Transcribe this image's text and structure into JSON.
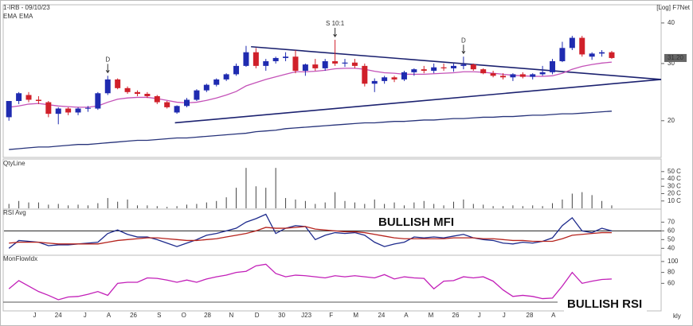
{
  "chart_data": [
    {
      "type": "candlestick",
      "title": "1-IRB - 09/10/23",
      "scale_label": "[Log] F7Net",
      "log_scale": true,
      "ylim": [
        15.5,
        45
      ],
      "yticks": [
        20,
        30,
        40
      ],
      "xlim": [
        -0.5,
        66
      ],
      "up_color": "#1f2bb0",
      "down_color": "#d0202a",
      "open": [
        20.5,
        23,
        24,
        23.2,
        22.8,
        21,
        21.8,
        21.2,
        21.8,
        21.8,
        24.3,
        26.8,
        25.2,
        24.5,
        24.2,
        23.8,
        22.8,
        21.2,
        22.2,
        23.2,
        24.8,
        25.8,
        26.8,
        27.8,
        29.5,
        32.5,
        29.5,
        30.5,
        31.2,
        31.5,
        28.5,
        29.8,
        29,
        30.5,
        30,
        30.2,
        29.5,
        26,
        26.5,
        27.2,
        26.8,
        28.2,
        28.8,
        28.5,
        29.2,
        29,
        29.5,
        29.8,
        28.8,
        28,
        27.5,
        27.2,
        27.8,
        27.3,
        27.8,
        28.2,
        30.5,
        33.5,
        36,
        31.5,
        32.2,
        32.5
      ],
      "high": [
        23,
        24.5,
        24.5,
        23.8,
        23,
        22,
        22,
        22,
        22.2,
        24.5,
        27.5,
        27,
        25.5,
        24.8,
        24.5,
        24,
        23,
        22.3,
        23.5,
        25,
        26,
        27,
        28,
        30,
        34,
        33.5,
        31,
        31.5,
        32.5,
        33,
        30,
        31,
        31,
        35.5,
        31,
        31,
        30,
        27,
        27.5,
        27.5,
        28.5,
        29,
        29.5,
        30,
        30,
        30,
        31.5,
        30,
        29,
        28.5,
        28,
        28,
        28.2,
        28,
        29.5,
        31,
        35,
        36.5,
        36.5,
        32.5,
        33,
        32.8
      ],
      "low": [
        20,
        22.5,
        22.8,
        22.5,
        20.5,
        19.5,
        20.8,
        20.8,
        21.3,
        21.6,
        24,
        25,
        24.2,
        23.8,
        23.5,
        22.5,
        21.8,
        21,
        22,
        23,
        24.5,
        25.5,
        26.5,
        27.5,
        29.3,
        29,
        28.5,
        30,
        30.5,
        28,
        27.5,
        28.5,
        28.5,
        29.5,
        29.3,
        29,
        25.5,
        24.5,
        26,
        26.3,
        26.5,
        27.5,
        28,
        28,
        28.5,
        28.3,
        28.8,
        28.5,
        27.8,
        27.2,
        26.8,
        26.5,
        27,
        26.8,
        27.5,
        27.8,
        30.3,
        33,
        31.5,
        30.8,
        31.5,
        31
      ],
      "close": [
        23,
        24.3,
        23.2,
        23,
        21,
        21.8,
        21.2,
        21.8,
        21.9,
        24.3,
        26.8,
        25.2,
        24.5,
        24.2,
        23.8,
        22.8,
        22,
        22.2,
        23.2,
        24.8,
        25.8,
        26.8,
        27.8,
        29.5,
        32.5,
        29.5,
        30.5,
        31.2,
        31.5,
        28.5,
        29.8,
        29,
        30.5,
        30,
        30.2,
        29.5,
        26,
        26.5,
        27.2,
        26.8,
        28.2,
        28.8,
        28.5,
        29.2,
        29,
        29.5,
        29.8,
        28.8,
        28,
        27.5,
        27.2,
        27.8,
        27.3,
        27.8,
        28.2,
        30.5,
        33.5,
        36,
        32,
        32.2,
        32.5,
        31.2
      ],
      "series": [
        {
          "name": "EMA",
          "color": "#c452b8",
          "values": [
            22,
            22.2,
            22.5,
            22.6,
            22.4,
            22.2,
            22.1,
            22,
            22,
            22.2,
            22.8,
            23.3,
            23.5,
            23.6,
            23.6,
            23.4,
            23.1,
            22.8,
            22.7,
            22.8,
            23.1,
            23.5,
            24,
            24.6,
            25.6,
            26.2,
            26.8,
            27.3,
            27.8,
            28.3,
            28.3,
            28.4,
            28.6,
            28.9,
            29,
            29,
            28.8,
            28.4,
            28.1,
            28,
            27.8,
            27.8,
            27.8,
            27.9,
            28,
            28.1,
            28.3,
            28.3,
            28.2,
            28,
            27.8,
            27.6,
            27.5,
            27.4,
            27.4,
            27.5,
            28,
            28.8,
            29.4,
            29.8,
            30.1,
            30.3
          ]
        },
        {
          "name": "EMA",
          "color": "#27337a",
          "values": [
            16.3,
            16.4,
            16.5,
            16.6,
            16.6,
            16.7,
            16.8,
            16.9,
            16.9,
            17.0,
            17.1,
            17.2,
            17.3,
            17.4,
            17.4,
            17.5,
            17.6,
            17.7,
            17.7,
            17.8,
            17.9,
            18.0,
            18.1,
            18.2,
            18.3,
            18.5,
            18.6,
            18.7,
            18.9,
            19.0,
            19.1,
            19.2,
            19.3,
            19.4,
            19.5,
            19.6,
            19.7,
            19.7,
            19.8,
            19.9,
            19.9,
            20.0,
            20.1,
            20.1,
            20.2,
            20.3,
            20.3,
            20.4,
            20.5,
            20.5,
            20.6,
            20.6,
            20.7,
            20.8,
            20.8,
            20.9,
            21.0,
            21.0,
            21.1,
            21.2,
            21.3,
            21.4
          ]
        }
      ],
      "trendlines": [
        {
          "color": "#1c2270",
          "x": [
            24.5,
            66
          ],
          "y": [
            33.8,
            26.8
          ]
        },
        {
          "color": "#1c2270",
          "x": [
            16.8,
            66
          ],
          "y": [
            19.7,
            26.8
          ]
        }
      ],
      "annotations": [
        {
          "text": "D",
          "index": 10
        },
        {
          "text": "S 10:1",
          "index": 33
        },
        {
          "text": "D",
          "index": 46
        }
      ],
      "last_price": {
        "value": 31.2,
        "label": "31.20"
      }
    },
    {
      "type": "bar",
      "title": "QtyLine",
      "color": "#444",
      "ylim": [
        0,
        66
      ],
      "yticks": [
        {
          "value": 10,
          "label": "10 C"
        },
        {
          "value": 20,
          "label": "20 C"
        },
        {
          "value": 30,
          "label": "30 C"
        },
        {
          "value": 40,
          "label": "40 C"
        },
        {
          "value": 50,
          "label": "50 C"
        }
      ],
      "values": [
        6,
        10,
        8,
        8,
        5,
        6,
        4,
        5,
        4,
        7,
        14,
        9,
        12,
        4,
        4,
        3,
        2,
        3,
        5,
        6,
        8,
        10,
        15,
        28,
        55,
        30,
        28,
        55,
        14,
        12,
        10,
        6,
        8,
        22,
        10,
        8,
        6,
        12,
        6,
        8,
        4,
        8,
        10,
        6,
        4,
        9,
        12,
        6,
        5,
        3,
        3,
        4,
        3,
        4,
        3,
        7,
        12,
        20,
        22,
        18,
        10,
        4
      ]
    },
    {
      "type": "line",
      "title": "RSI Avg",
      "callout": "BULLISH MFI",
      "ylim": [
        33,
        84
      ],
      "yticks": [
        40,
        50,
        60,
        70
      ],
      "reference_line": 60,
      "series": [
        {
          "name": "RSI",
          "color": "#1d2a8c",
          "values": [
            40,
            49,
            48,
            47,
            43,
            44,
            44,
            45,
            46,
            47,
            57,
            61,
            56,
            53,
            53,
            50,
            46,
            42,
            46,
            50,
            55,
            57,
            60,
            63,
            70,
            74,
            79,
            57,
            63,
            66,
            65,
            50,
            55,
            58,
            57,
            58,
            55,
            47,
            42,
            45,
            47,
            53,
            52,
            53,
            52,
            54,
            56,
            52,
            50,
            49,
            46,
            45,
            47,
            46,
            48,
            52,
            66,
            75,
            60,
            58,
            63,
            60
          ]
        },
        {
          "name": "Avg",
          "color": "#b5231d",
          "values": [
            46,
            47,
            47,
            47,
            46,
            45,
            45,
            45,
            45,
            45,
            47,
            49,
            50,
            51,
            52,
            52,
            51,
            50,
            49,
            49,
            50,
            51,
            53,
            55,
            57,
            60,
            64,
            63,
            63,
            64,
            65,
            62,
            61,
            60,
            59,
            59,
            58,
            56,
            54,
            52,
            51,
            51,
            51,
            51,
            51,
            52,
            52,
            52,
            51,
            51,
            50,
            49,
            49,
            48,
            48,
            48,
            51,
            55,
            56,
            57,
            58,
            58
          ]
        }
      ]
    },
    {
      "type": "line",
      "title": "MonFlowIdx",
      "callout": "BULLISH RSI",
      "ylim": [
        11,
        110
      ],
      "yticks": [
        60,
        80,
        100
      ],
      "series": [
        {
          "name": "MonFlowIdx",
          "color": "#c21fb8",
          "values": [
            50,
            65,
            55,
            45,
            38,
            30,
            35,
            36,
            40,
            45,
            38,
            60,
            62,
            62,
            70,
            69,
            66,
            62,
            66,
            62,
            68,
            72,
            75,
            80,
            82,
            92,
            95,
            78,
            72,
            75,
            74,
            72,
            70,
            74,
            72,
            74,
            72,
            70,
            76,
            68,
            72,
            70,
            69,
            50,
            64,
            65,
            72,
            70,
            72,
            64,
            48,
            36,
            38,
            36,
            32,
            33,
            55,
            80,
            60,
            64,
            67,
            68
          ]
        }
      ],
      "xticks": [
        {
          "value": 2.6,
          "label": "J"
        },
        {
          "value": 5.0,
          "label": "24"
        },
        {
          "value": 7.7,
          "label": "J"
        },
        {
          "value": 10.1,
          "label": "A"
        },
        {
          "value": 12.6,
          "label": "26"
        },
        {
          "value": 15.2,
          "label": "S"
        },
        {
          "value": 17.7,
          "label": "O"
        },
        {
          "value": 20.1,
          "label": "28"
        },
        {
          "value": 22.5,
          "label": "N"
        },
        {
          "value": 25.1,
          "label": "D"
        },
        {
          "value": 27.6,
          "label": "30"
        },
        {
          "value": 30.1,
          "label": "J23"
        },
        {
          "value": 32.6,
          "label": "F"
        },
        {
          "value": 35.1,
          "label": "M"
        },
        {
          "value": 37.7,
          "label": "24"
        },
        {
          "value": 40.2,
          "label": "A"
        },
        {
          "value": 42.7,
          "label": "M"
        },
        {
          "value": 45.2,
          "label": "26"
        },
        {
          "value": 47.6,
          "label": "J"
        },
        {
          "value": 50.1,
          "label": "J"
        },
        {
          "value": 52.7,
          "label": "28"
        },
        {
          "value": 55.1,
          "label": "A"
        }
      ],
      "period_label": "kly"
    }
  ]
}
